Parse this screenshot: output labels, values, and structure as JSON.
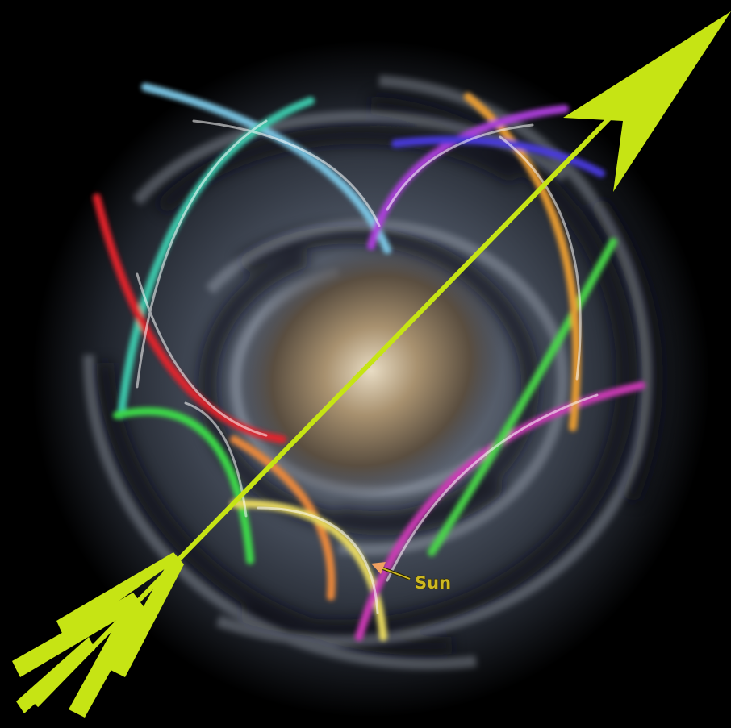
{
  "labels": {
    "sun": "Sun"
  }
}
